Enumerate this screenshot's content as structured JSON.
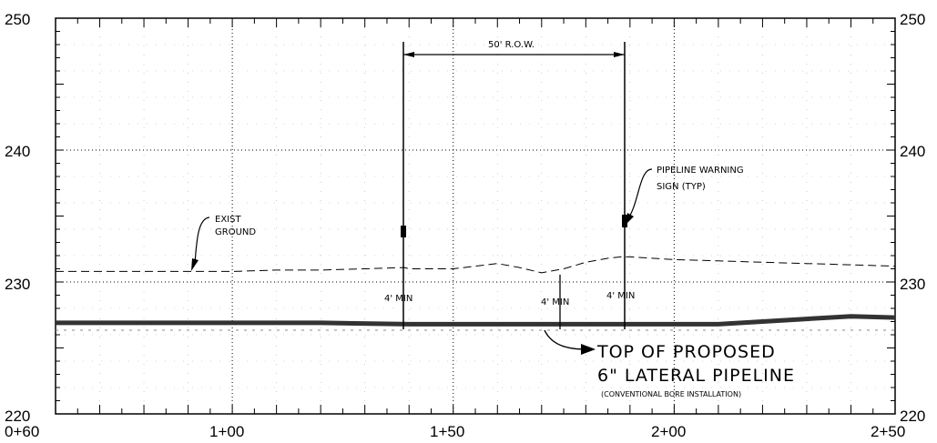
{
  "axes": {
    "x_ticks": [
      {
        "value": 60,
        "label": "0+60"
      },
      {
        "value": 100,
        "label": "1+00"
      },
      {
        "value": 150,
        "label": "1+50"
      },
      {
        "value": 200,
        "label": "2+00"
      },
      {
        "value": 250,
        "label": "2+50"
      }
    ],
    "y_ticks_left": [
      "220",
      "230",
      "240",
      "250"
    ],
    "y_ticks_right": [
      "220",
      "230",
      "240",
      "250"
    ],
    "x_range": [
      60,
      250
    ],
    "y_range": [
      220,
      250
    ],
    "grid": "dotted"
  },
  "annotations": {
    "row": "50' R.O.W.",
    "exist_ground_1": "EXIST",
    "exist_ground_2": "GROUND",
    "warning_1": "PIPELINE WARNING",
    "warning_2": "SIGN (TYP)",
    "min_a": "4' MIN",
    "min_b": "4' MIN",
    "min_c": "4' MIN",
    "pipe_1": "TOP OF PROPOSED",
    "pipe_2": "6\" LATERAL PIPELINE",
    "pipe_3": "(CONVENTIONAL BORE INSTALLATION)"
  },
  "chart_data": {
    "type": "line",
    "series": [
      {
        "x": [
          60,
          70,
          80,
          90,
          100,
          110,
          120,
          130,
          139,
          140,
          145,
          150,
          155,
          160,
          165,
          170,
          175,
          180,
          185,
          188,
          190,
          195,
          200,
          210,
          220,
          230,
          240,
          250
        ],
        "y": [
          230.8,
          230.8,
          230.8,
          230.8,
          230.8,
          230.9,
          230.9,
          231.0,
          231.1,
          231.0,
          231.0,
          231.0,
          231.2,
          231.4,
          231.1,
          230.7,
          231.0,
          231.5,
          231.8,
          231.9,
          231.9,
          231.8,
          231.7,
          231.6,
          231.5,
          231.4,
          231.3,
          231.2
        ]
      },
      {
        "x": [
          60,
          80,
          100,
          120,
          140,
          160,
          175,
          190,
          200,
          210,
          220,
          230,
          240,
          250
        ],
        "y": [
          226.9,
          226.9,
          226.9,
          226.9,
          226.8,
          226.8,
          226.8,
          226.8,
          226.8,
          226.8,
          227.0,
          227.2,
          227.4,
          227.3
        ]
      }
    ],
    "markers_x": [
      139.5,
      175.5,
      190.5
    ],
    "row_x": [
      139.5,
      190.5
    ]
  }
}
